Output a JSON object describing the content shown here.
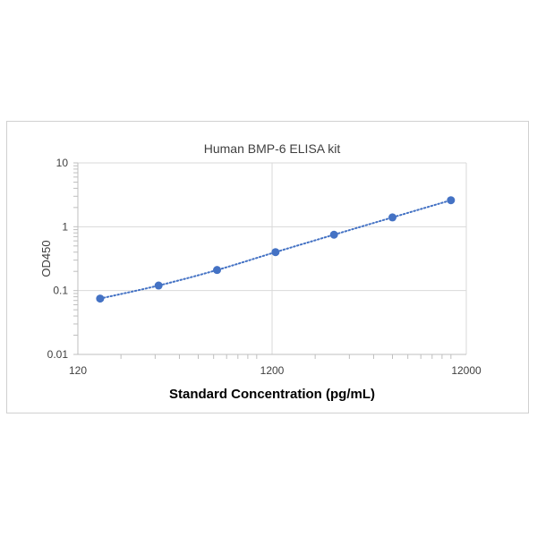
{
  "chart_data": {
    "type": "scatter",
    "title": "Human BMP-6  ELISA kit",
    "xlabel": "Standard Concentration (pg/mL)",
    "ylabel": "OD450",
    "x_scale": "log",
    "y_scale": "log",
    "xlim": [
      120,
      12000
    ],
    "ylim": [
      0.01,
      10
    ],
    "x_ticks": [
      "120",
      "1200",
      "12000"
    ],
    "y_ticks": [
      "0.01",
      "0.1",
      "1",
      "10"
    ],
    "grid": true,
    "trendline": "dotted",
    "series": [
      {
        "x": [
          156.25,
          312.5,
          625,
          1250,
          2500,
          5000,
          10000
        ],
        "y": [
          0.075,
          0.12,
          0.21,
          0.4,
          0.75,
          1.4,
          2.6
        ]
      }
    ],
    "colors": {
      "marker": "#4472c4",
      "trend": "#4472c4",
      "grid": "#d9d9d9",
      "axis": "#bfbfbf"
    }
  }
}
